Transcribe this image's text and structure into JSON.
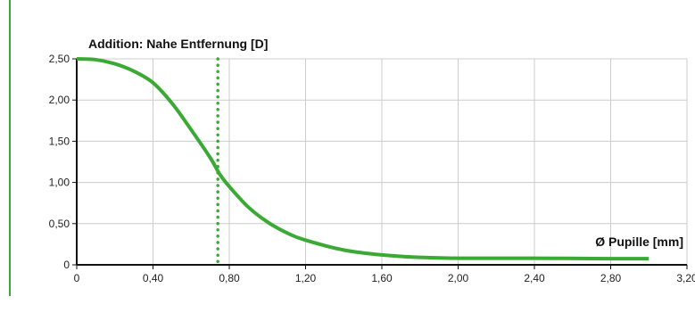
{
  "colors": {
    "accent": "#3aaa35",
    "grid": "#cccccc",
    "axis": "#111111"
  },
  "chart_data": {
    "type": "line",
    "title": "",
    "ylabel": "Addition: Nahe Entfernung [D]",
    "xlabel": "Ø Pupille [mm]",
    "xlim": [
      0,
      3.2
    ],
    "ylim": [
      0,
      2.5
    ],
    "x_ticks": [
      0,
      0.4,
      0.8,
      1.2,
      1.6,
      2.0,
      2.4,
      2.8,
      3.2
    ],
    "x_tick_labels": [
      "0",
      "0,40",
      "0,80",
      "1,20",
      "1,60",
      "2,00",
      "2,40",
      "2,80",
      "3,20"
    ],
    "y_ticks": [
      0,
      0.5,
      1.0,
      1.5,
      2.0,
      2.5
    ],
    "y_tick_labels": [
      "0",
      "0,50",
      "1,00",
      "1,50",
      "2,00",
      "2,50"
    ],
    "grid": true,
    "series": [
      {
        "x": [
          0,
          0.1,
          0.2,
          0.3,
          0.4,
          0.5,
          0.6,
          0.7,
          0.75,
          0.8,
          0.9,
          1.0,
          1.1,
          1.2,
          1.4,
          1.6,
          1.8,
          2.0,
          2.4,
          2.8,
          3.0
        ],
        "y": [
          2.5,
          2.49,
          2.44,
          2.35,
          2.21,
          1.96,
          1.64,
          1.3,
          1.1,
          0.95,
          0.7,
          0.52,
          0.39,
          0.3,
          0.18,
          0.12,
          0.09,
          0.08,
          0.08,
          0.075,
          0.075
        ]
      }
    ],
    "reference_line": {
      "x": 0.74,
      "style": "dotted"
    }
  }
}
